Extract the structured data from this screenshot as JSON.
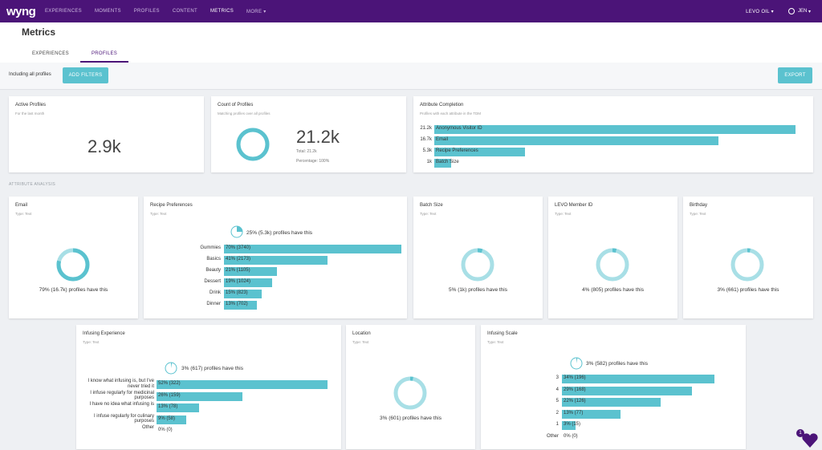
{
  "nav": {
    "logo": "wyng",
    "items": [
      "EXPERIENCES",
      "MOMENTS",
      "PROFILES",
      "CONTENT",
      "METRICS",
      "MORE"
    ],
    "org": "LEVO OIL",
    "user": "JEN"
  },
  "header": {
    "title": "Metrics",
    "tabs": [
      "EXPERIENCES",
      "PROFILES"
    ]
  },
  "filters": {
    "including": "Including all profiles",
    "add_filters": "ADD FILTERS",
    "export": "EXPORT"
  },
  "active": {
    "title": "Active Profiles",
    "subtitle": "For the last month",
    "value": "2.9k"
  },
  "count": {
    "title": "Count of Profiles",
    "subtitle": "Matching profiles over all profiles",
    "value": "21.2k",
    "total": "Total: 21.2k",
    "percentage": "Percentage: 100%",
    "fraction": 1.0
  },
  "completion": {
    "title": "Attribute Completion",
    "subtitle": "Profiles with each attribute in the TDM",
    "rows": [
      {
        "count": "21.2k",
        "label": "Anonymous Visitor ID",
        "value": 21.2
      },
      {
        "count": "16.7k",
        "label": "Email",
        "value": 16.7
      },
      {
        "count": "5.3k",
        "label": "Recipe Preferences",
        "value": 5.3
      },
      {
        "count": "1k",
        "label": "Batch Size",
        "value": 1.0
      }
    ]
  },
  "section_label": "ATTRIBUTE ANALYSIS",
  "email": {
    "title": "Email",
    "type": "Type: Text",
    "text": "79% (16.7k) profiles have this",
    "fraction": 0.79
  },
  "recipe": {
    "title": "Recipe Preferences",
    "type": "Type: Text",
    "text": "25% (5.3k) profiles have this",
    "fraction": 0.25,
    "rows": [
      {
        "label": "Gummies",
        "text": "70% (3740)",
        "pct": 70
      },
      {
        "label": "Basics",
        "text": "41% (2173)",
        "pct": 41
      },
      {
        "label": "Beauty",
        "text": "21% (1105)",
        "pct": 21
      },
      {
        "label": "Dessert",
        "text": "19% (1024)",
        "pct": 19
      },
      {
        "label": "Drink",
        "text": "15% (823)",
        "pct": 15
      },
      {
        "label": "Dinner",
        "text": "13% (702)",
        "pct": 13
      }
    ]
  },
  "batch": {
    "title": "Batch Size",
    "type": "Type: Text",
    "text": "5% (1k) profiles have this",
    "fraction": 0.05
  },
  "levo": {
    "title": "LEVO Member ID",
    "type": "Type: Text",
    "text": "4% (805) profiles have this",
    "fraction": 0.04
  },
  "birthday": {
    "title": "Birthday",
    "type": "Type: Text",
    "text": "3% (661) profiles have this",
    "fraction": 0.03
  },
  "infusing": {
    "title": "Infusing Experience",
    "type": "Type: Text",
    "text": "3% (617) profiles have this",
    "fraction": 0.03,
    "rows": [
      {
        "label": "I know what infusing is, but I've never tried it",
        "text": "52% (322)",
        "pct": 52
      },
      {
        "label": "I infuse regularly for medicinal purposes",
        "text": "26% (159)",
        "pct": 26
      },
      {
        "label": "I have no idea what infusing is",
        "text": "13% (78)",
        "pct": 13
      },
      {
        "label": "I infuse regularly for culinary purposes",
        "text": "9% (58)",
        "pct": 9
      },
      {
        "label": "Other",
        "text": "0% (0)",
        "pct": 0
      }
    ]
  },
  "location": {
    "title": "Location",
    "type": "Type: Text",
    "text": "3% (601) profiles have this",
    "fraction": 0.03
  },
  "scale": {
    "title": "Infusing Scale",
    "type": "Type: Text",
    "text": "3% (582) profiles have this",
    "fraction": 0.03,
    "rows": [
      {
        "label": "3",
        "text": "34% (196)",
        "pct": 34
      },
      {
        "label": "4",
        "text": "29% (168)",
        "pct": 29
      },
      {
        "label": "5",
        "text": "22% (126)",
        "pct": 22
      },
      {
        "label": "2",
        "text": "13% (77)",
        "pct": 13
      },
      {
        "label": "1",
        "text": "3% (15)",
        "pct": 3
      },
      {
        "label": "Other",
        "text": "0% (0)",
        "pct": 0
      }
    ]
  },
  "help_badge": "1",
  "colors": {
    "nav": "#4b1478",
    "accent": "#5bc2cf",
    "ring_light": "#a8dfe6"
  }
}
